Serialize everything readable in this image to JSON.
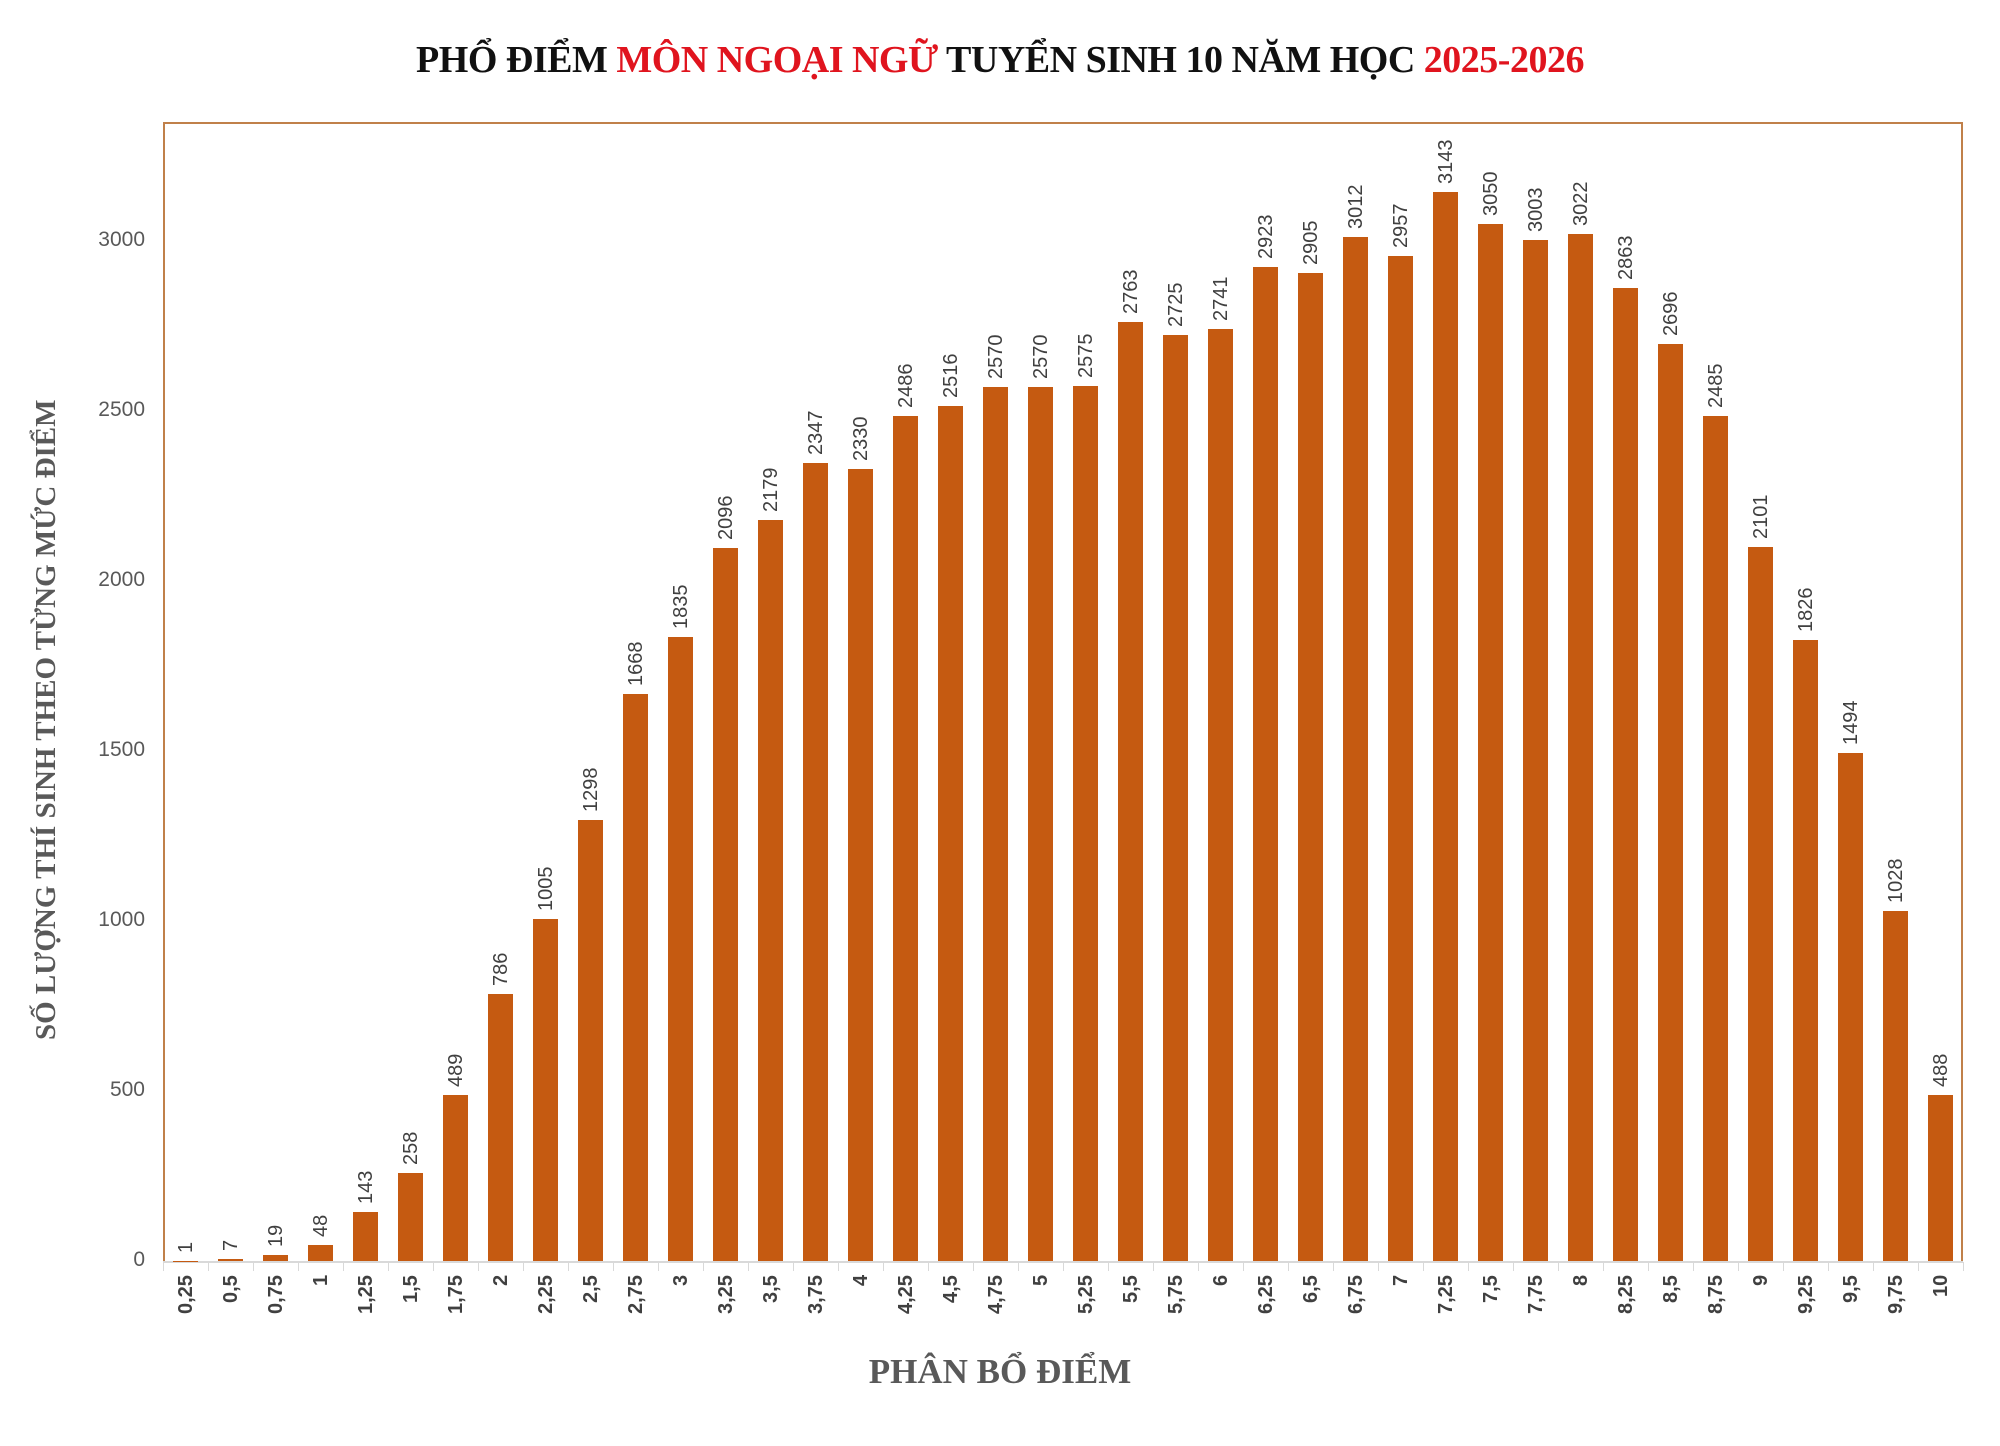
{
  "title": {
    "part1": "PHỔ ĐIỂM ",
    "part2": "MÔN NGOẠI NGỮ",
    "part3": " TUYỂN SINH 10 NĂM HỌC ",
    "part4": "2025-2026"
  },
  "colors": {
    "bar": "#C55A11",
    "title_accent": "#E0141E",
    "plot_border": "#C0804A",
    "axis_text": "#595959"
  },
  "y_ticks": [
    "0",
    "500",
    "1000",
    "1500",
    "2000",
    "2500",
    "3000"
  ],
  "chart_data": {
    "type": "bar",
    "title": "PHỔ ĐIỂM MÔN NGOẠI NGỮ TUYỂN SINH 10 NĂM HỌC 2025-2026",
    "xlabel": "PHÂN BỔ ĐIỂM",
    "ylabel": "SỐ LƯỢNG THÍ SINH THEO TỪNG MỨC ĐIỂM",
    "ylim": [
      0,
      3350
    ],
    "grid": false,
    "legend": null,
    "categories": [
      "0,25",
      "0,5",
      "0,75",
      "1",
      "1,25",
      "1,5",
      "1,75",
      "2",
      "2,25",
      "2,5",
      "2,75",
      "3",
      "3,25",
      "3,5",
      "3,75",
      "4",
      "4,25",
      "4,5",
      "4,75",
      "5",
      "5,25",
      "5,5",
      "5,75",
      "6",
      "6,25",
      "6,5",
      "6,75",
      "7",
      "7,25",
      "7,5",
      "7,75",
      "8",
      "8,25",
      "8,5",
      "8,75",
      "9",
      "9,25",
      "9,5",
      "9,75",
      "10"
    ],
    "values": [
      1,
      7,
      19,
      48,
      143,
      258,
      489,
      786,
      1005,
      1298,
      1668,
      1835,
      2096,
      2179,
      2347,
      2330,
      2486,
      2516,
      2570,
      2570,
      2575,
      2763,
      2725,
      2741,
      2923,
      2905,
      3012,
      2957,
      3143,
      3050,
      3003,
      3022,
      2863,
      2696,
      2485,
      2101,
      1826,
      1494,
      1028,
      488
    ]
  }
}
